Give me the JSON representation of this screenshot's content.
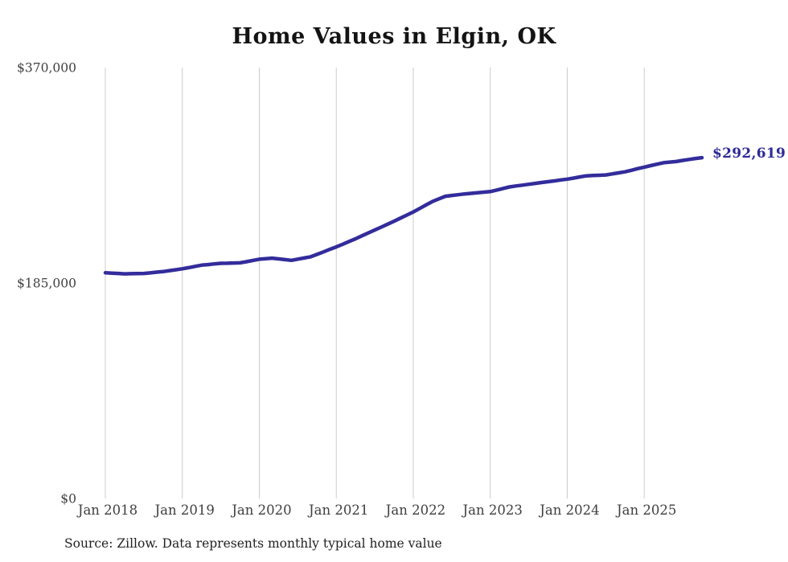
{
  "chart": {
    "title": "Home Values in Elgin, OK",
    "source": "Source: Zillow. Data represents monthly typical home value",
    "end_label": "$292,619",
    "colors": {
      "line": "#332c9b",
      "grid": "#cccccc",
      "title_text": "#141414",
      "axis_text": "#3f3f3f",
      "end_label_text": "#2e2a96",
      "source_text": "#222222",
      "background": "#ffffff"
    }
  },
  "chart_data": {
    "type": "line",
    "title": "Home Values in Elgin, OK",
    "frequency": "monthly",
    "x_start": "2018-01",
    "x_end": "2025-10",
    "x_tick_labels": [
      "Jan 2018",
      "Jan 2019",
      "Jan 2020",
      "Jan 2021",
      "Jan 2022",
      "Jan 2023",
      "Jan 2024",
      "Jan 2025"
    ],
    "y_ticks": [
      {
        "label": "$0",
        "value": 0
      },
      {
        "label": "$185,000",
        "value": 185000
      },
      {
        "label": "$370,000",
        "value": 370000
      }
    ],
    "ylim": [
      0,
      370000
    ],
    "grid": "vertical-only",
    "legend": "none",
    "end_value": 292619,
    "end_label": "$292,619",
    "series": [
      {
        "name": "Typical home value",
        "values": [
          193800,
          193500,
          193200,
          192900,
          193000,
          193100,
          193200,
          193700,
          194300,
          194800,
          195600,
          196400,
          197200,
          198200,
          199300,
          200300,
          200800,
          201400,
          201900,
          202000,
          202200,
          202300,
          203300,
          204400,
          205400,
          205900,
          206300,
          205700,
          205100,
          204500,
          205500,
          206500,
          207500,
          209600,
          211700,
          213900,
          216000,
          218300,
          220700,
          223000,
          225500,
          228000,
          230500,
          233000,
          235500,
          238000,
          240700,
          243300,
          246000,
          249000,
          252000,
          255000,
          257300,
          259500,
          260200,
          260800,
          261500,
          262000,
          262500,
          263000,
          263500,
          264800,
          266200,
          267500,
          268300,
          269000,
          269800,
          270500,
          271300,
          272000,
          272700,
          273500,
          274200,
          275100,
          276100,
          277000,
          277300,
          277500,
          277800,
          278700,
          279600,
          280500,
          281800,
          283200,
          284500,
          285800,
          287000,
          288300,
          288800,
          289300,
          290300,
          291100,
          291900,
          292619
        ]
      }
    ],
    "source": "Source: Zillow. Data represents monthly typical home value"
  }
}
